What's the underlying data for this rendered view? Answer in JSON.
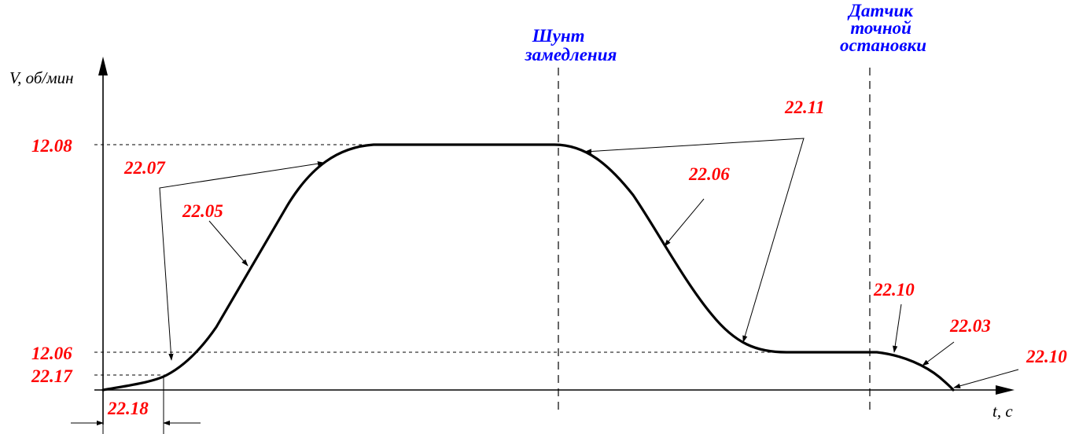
{
  "axes": {
    "y_label": "V, об/мин",
    "x_label": "t, с"
  },
  "levels": {
    "upper": "12.08",
    "lower": "12.06",
    "start": "22.17"
  },
  "markers": {
    "slowdown_shunt": [
      "Шунт",
      "замедления"
    ],
    "stop_sensor": [
      "Датчик",
      "точной",
      "остановки"
    ]
  },
  "parameters": {
    "accel_jerk": "22.07",
    "accel": "22.05",
    "decel_jerk": "22.11",
    "decel": "22.06",
    "stop_jerk_start": "22.10",
    "stop_decel": "22.03",
    "stop_jerk_end": "22.10",
    "start_time": "22.18"
  }
}
